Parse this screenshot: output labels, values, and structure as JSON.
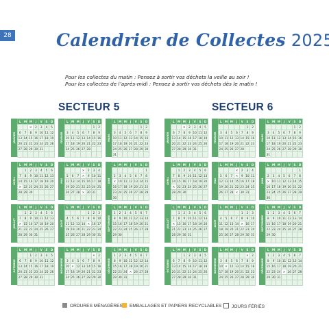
{
  "page_number": "28",
  "title": "Calendrier de Collectes",
  "year": "2025",
  "notes": [
    "Pour les collectes du matin : Pensez à sortir vos déchets la veille au soir !",
    "Pour les collectes de l’après-midi : Pensez à sortir vos déchets dès le matin !"
  ],
  "weekday_headers": [
    "L",
    "M",
    "M",
    "J",
    "V",
    "S",
    "D"
  ],
  "sectors": [
    {
      "name": "SECTEUR 5",
      "months": [
        {
          "name": "JANVIER",
          "start": 2,
          "days": 31,
          "grey": [],
          "yellow": [],
          "holiday": [
            1
          ]
        },
        {
          "name": "FÉVRIER",
          "start": 5,
          "days": 28,
          "grey": [],
          "yellow": [],
          "holiday": []
        },
        {
          "name": "MARS",
          "start": 5,
          "days": 31,
          "grey": [],
          "yellow": [],
          "holiday": []
        },
        {
          "name": "AVRIL",
          "start": 1,
          "days": 30,
          "grey": [],
          "yellow": [],
          "holiday": [
            21
          ]
        },
        {
          "name": "MAI",
          "start": 3,
          "days": 31,
          "grey": [],
          "yellow": [],
          "holiday": [
            1,
            8,
            29
          ]
        },
        {
          "name": "JUIN",
          "start": 6,
          "days": 30,
          "grey": [],
          "yellow": [],
          "holiday": [
            9
          ]
        },
        {
          "name": "JUILLET",
          "start": 1,
          "days": 31,
          "grey": [],
          "yellow": [],
          "holiday": [
            14
          ]
        },
        {
          "name": "AOÛT",
          "start": 4,
          "days": 31,
          "grey": [],
          "yellow": [],
          "holiday": [
            15
          ]
        },
        {
          "name": "SEPTEMBRE",
          "start": 0,
          "days": 30,
          "grey": [],
          "yellow": [],
          "holiday": []
        },
        {
          "name": "OCTOBRE",
          "start": 2,
          "days": 31,
          "grey": [],
          "yellow": [],
          "holiday": []
        },
        {
          "name": "NOVEMBRE",
          "start": 5,
          "days": 30,
          "grey": [],
          "yellow": [],
          "holiday": [
            1,
            11
          ]
        },
        {
          "name": "DÉCEMBRE",
          "start": 0,
          "days": 31,
          "grey": [],
          "yellow": [],
          "holiday": [
            25
          ]
        }
      ]
    },
    {
      "name": "SECTEUR 6",
      "months": [
        {
          "name": "JANVIER",
          "start": 2,
          "days": 31,
          "grey": [],
          "yellow": [],
          "holiday": [
            1
          ]
        },
        {
          "name": "FÉVRIER",
          "start": 5,
          "days": 28,
          "grey": [],
          "yellow": [],
          "holiday": []
        },
        {
          "name": "MARS",
          "start": 5,
          "days": 31,
          "grey": [],
          "yellow": [],
          "holiday": []
        },
        {
          "name": "AVRIL",
          "start": 1,
          "days": 30,
          "grey": [],
          "yellow": [],
          "holiday": [
            21
          ]
        },
        {
          "name": "MAI",
          "start": 3,
          "days": 31,
          "grey": [],
          "yellow": [],
          "holiday": [
            1,
            8,
            29
          ]
        },
        {
          "name": "JUIN",
          "start": 6,
          "days": 30,
          "grey": [],
          "yellow": [],
          "holiday": [
            9
          ]
        },
        {
          "name": "JUILLET",
          "start": 1,
          "days": 31,
          "grey": [],
          "yellow": [],
          "holiday": [
            14
          ]
        },
        {
          "name": "AOÛT",
          "start": 4,
          "days": 31,
          "grey": [],
          "yellow": [],
          "holiday": [
            15
          ]
        },
        {
          "name": "SEPTEMBRE",
          "start": 0,
          "days": 30,
          "grey": [],
          "yellow": [],
          "holiday": []
        },
        {
          "name": "OCTOBRE",
          "start": 2,
          "days": 31,
          "grey": [],
          "yellow": [],
          "holiday": []
        },
        {
          "name": "NOVEMBRE",
          "start": 5,
          "days": 30,
          "grey": [],
          "yellow": [],
          "holiday": [
            1,
            11
          ]
        },
        {
          "name": "DÉCEMBRE",
          "start": 0,
          "days": 31,
          "grey": [],
          "yellow": [],
          "holiday": [
            25
          ]
        }
      ]
    }
  ],
  "legend": {
    "ordures": "ORDURES MÉNAGÈRES",
    "emballages": "EMBALLAGES ET PAPIERS RECYCLABLES",
    "feries": "JOURS FÉRIÉS"
  },
  "colors": {
    "grey": "#8a8a8a",
    "yellow": "#f3b52d",
    "green": "#5eab70",
    "title_blue": "#2f62a8"
  }
}
